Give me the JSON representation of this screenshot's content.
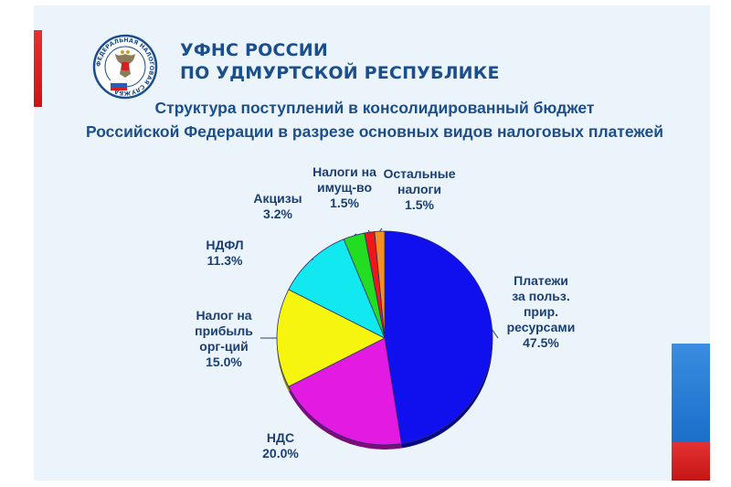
{
  "header": {
    "org_line1": "УФНС РОССИИ",
    "org_line2": "ПО УДМУРТСКОЙ РЕСПУБЛИКЕ"
  },
  "logo": {
    "icon": "fns-emblem-icon",
    "ring_text": "ФЕДЕРАЛЬНАЯ НАЛОГОВАЯ СЛУЖБА"
  },
  "title": {
    "line1": "Структура поступлений в консолидированный бюджет",
    "line2": "Российской Федерации в разрезе основных видов налоговых платежей"
  },
  "colors": {
    "accent_red": "#d62020",
    "accent_blue": "#2a7fd6",
    "text_blue": "#1b4e8c"
  },
  "chart_data": {
    "type": "pie",
    "unit": "%",
    "slices": [
      {
        "key": "resources",
        "label_lines": [
          "Платежи",
          "за польз.",
          "прир.",
          "ресурсами"
        ],
        "value": 47.5,
        "value_label": "47.5%",
        "color": "#1010ee"
      },
      {
        "key": "vat",
        "label_lines": [
          "НДС"
        ],
        "value": 20.0,
        "value_label": "20.0%",
        "color": "#e21ae2"
      },
      {
        "key": "profit",
        "label_lines": [
          "Налог на",
          "прибыль",
          "орг-ций"
        ],
        "value": 15.0,
        "value_label": "15.0%",
        "color": "#f5f510"
      },
      {
        "key": "ndfl",
        "label_lines": [
          "НДФЛ"
        ],
        "value": 11.3,
        "value_label": "11.3%",
        "color": "#12e8f0"
      },
      {
        "key": "excise",
        "label_lines": [
          "Акцизы"
        ],
        "value": 3.2,
        "value_label": "3.2%",
        "color": "#22dd22"
      },
      {
        "key": "property",
        "label_lines": [
          "Налоги на",
          "имущ-во"
        ],
        "value": 1.5,
        "value_label": "1.5%",
        "color": "#ee1818"
      },
      {
        "key": "other",
        "label_lines": [
          "Остальные",
          "налоги"
        ],
        "value": 1.5,
        "value_label": "1.5%",
        "color": "#f39020"
      }
    ]
  }
}
